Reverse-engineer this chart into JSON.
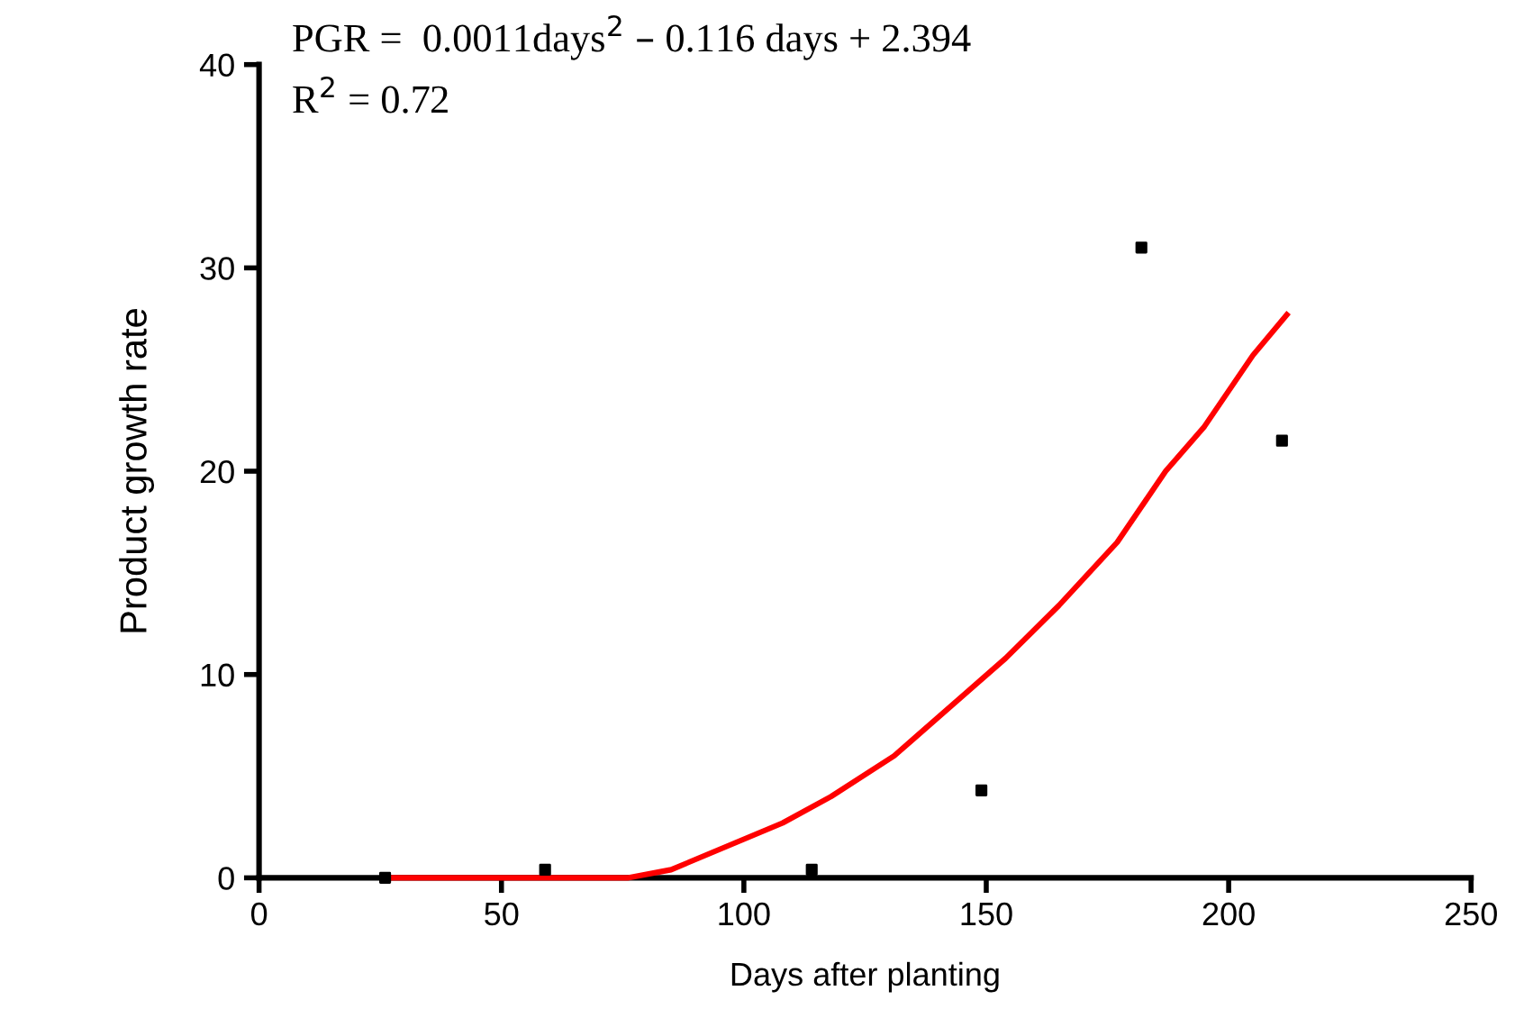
{
  "chart_data": {
    "type": "scatter",
    "xlabel": "Days after planting",
    "ylabel": "Product growth rate",
    "annotations": [
      "PGR =  0.0011days$^{2}$ – 0.116 days + 2.394",
      "R$^{2}$ = 0.72"
    ],
    "xlim": [
      0,
      250
    ],
    "xticks": [
      0,
      50,
      100,
      150,
      200,
      250
    ],
    "ylim": [
      0,
      40
    ],
    "yticks": [
      0,
      10,
      20,
      30,
      40
    ],
    "grid": false,
    "marker": "square",
    "series": [
      {
        "color": "#000000",
        "x": [
          26,
          59,
          114,
          149,
          182,
          211
        ],
        "values": [
          0,
          0.4,
          0.4,
          4.3,
          31.0,
          21.5
        ]
      },
      {
        "type": "line",
        "color": "#ff0000",
        "marker": "none",
        "line_style": "solid",
        "x": [
          26,
          76,
          85,
          108,
          118,
          131,
          154,
          165,
          177,
          187,
          195,
          205,
          212
        ],
        "values": [
          0,
          0,
          0.4,
          2.7,
          4.0,
          6.0,
          10.8,
          13.4,
          16.5,
          20.0,
          22.2,
          25.7,
          27.7
        ]
      }
    ]
  }
}
